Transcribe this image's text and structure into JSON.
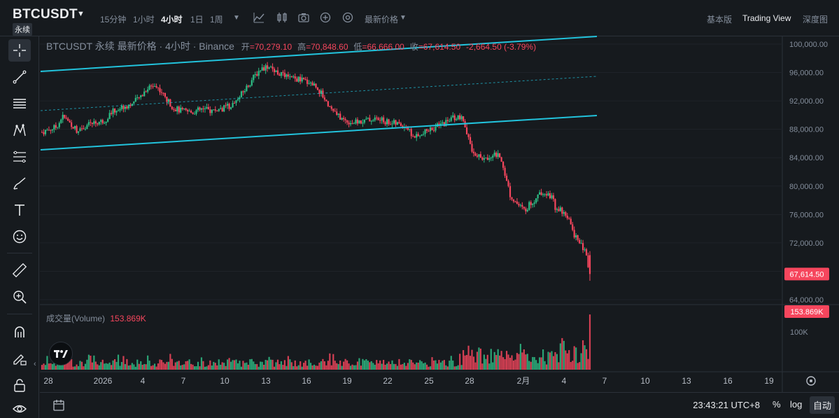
{
  "header": {
    "symbol": "BTCUSDT",
    "perpetual_tag": "永续",
    "timeframes": [
      "15分钟",
      "1小时",
      "4小时",
      "1日",
      "1周"
    ],
    "active_timeframe": "4小时",
    "price_type_label": "最新价格",
    "views": [
      "基本版",
      "Trading View",
      "深度图"
    ],
    "active_view": "Trading View"
  },
  "legend": {
    "title": "BTCUSDT 永续 最新价格 · 4小时 · Binance",
    "open_label": "开",
    "open_value": "=70,279.10",
    "high_label": "高",
    "high_value": "=70,848.60",
    "low_label": "低",
    "low_value": "=66,666.00",
    "close_label": "收",
    "close_value": "=67,614.50",
    "change": "-2,664.50 (-3.79%)"
  },
  "volume_legend": {
    "label": "成交量(Volume)",
    "value": "153.869K"
  },
  "price_axis": {
    "ticks": [
      "100,000.00",
      "96,000.00",
      "92,000.00",
      "88,000.00",
      "84,000.00",
      "80,000.00",
      "76,000.00",
      "72,000.00",
      "68,000.00",
      "64,000.00"
    ],
    "tick_values": [
      100000,
      96000,
      92000,
      88000,
      84000,
      80000,
      76000,
      72000,
      68000,
      64000
    ],
    "last_price_label": "67,614.50",
    "last_price": 67614.5,
    "volume_axis_label": "100K",
    "volume_last_label": "153.869K"
  },
  "time_axis": {
    "labels": [
      "28",
      "2026",
      "4",
      "7",
      "10",
      "13",
      "16",
      "19",
      "22",
      "25",
      "28",
      "2月",
      "4",
      "7",
      "10",
      "13",
      "16",
      "19"
    ]
  },
  "bottom": {
    "clock": "23:43:21 UTC+8",
    "percent_btn": "%",
    "log_btn": "log",
    "auto_btn": "自动"
  },
  "colors": {
    "up": "#2ebd85",
    "down": "#f6465d",
    "channel": "#22c3dc",
    "background": "#161a1e",
    "grid": "#1f2329"
  },
  "chart_data": {
    "type": "candlestick",
    "title": "BTCUSDT 永续 最新价格 · 4小时 · Binance",
    "ylim": [
      64000,
      101000
    ],
    "last": {
      "open": 70279.1,
      "high": 70848.6,
      "low": 66666.0,
      "close": 67614.5
    },
    "drawings": [
      {
        "type": "parallel-channel",
        "color": "#22c3dc"
      }
    ],
    "series": [
      {
        "name": "price",
        "anchors": [
          [
            0,
            87600
          ],
          [
            8,
            88300
          ],
          [
            12,
            89800
          ],
          [
            16,
            88900
          ],
          [
            20,
            87900
          ],
          [
            24,
            88400
          ],
          [
            30,
            88900
          ],
          [
            36,
            89200
          ],
          [
            40,
            90400
          ],
          [
            46,
            91100
          ],
          [
            52,
            91600
          ],
          [
            56,
            92400
          ],
          [
            60,
            93600
          ],
          [
            64,
            94300
          ],
          [
            68,
            93600
          ],
          [
            72,
            92100
          ],
          [
            76,
            91000
          ],
          [
            80,
            90600
          ],
          [
            86,
            90400
          ],
          [
            92,
            90800
          ],
          [
            98,
            90600
          ],
          [
            104,
            90900
          ],
          [
            110,
            91500
          ],
          [
            114,
            92600
          ],
          [
            118,
            93900
          ],
          [
            122,
            95300
          ],
          [
            126,
            96500
          ],
          [
            130,
            96900
          ],
          [
            134,
            96300
          ],
          [
            138,
            95700
          ],
          [
            142,
            95200
          ],
          [
            148,
            95000
          ],
          [
            154,
            94700
          ],
          [
            158,
            94100
          ],
          [
            162,
            92700
          ],
          [
            166,
            91200
          ],
          [
            170,
            90000
          ],
          [
            174,
            89300
          ],
          [
            180,
            88900
          ],
          [
            186,
            89200
          ],
          [
            192,
            89500
          ],
          [
            198,
            89100
          ],
          [
            204,
            88800
          ],
          [
            210,
            88400
          ],
          [
            214,
            87000
          ],
          [
            218,
            86900
          ],
          [
            222,
            87800
          ],
          [
            226,
            88200
          ],
          [
            230,
            88600
          ],
          [
            234,
            89200
          ],
          [
            238,
            89700
          ],
          [
            242,
            89500
          ],
          [
            244,
            88200
          ],
          [
            246,
            86500
          ],
          [
            248,
            85200
          ],
          [
            252,
            84100
          ],
          [
            256,
            83700
          ],
          [
            260,
            84600
          ],
          [
            264,
            84100
          ],
          [
            266,
            82800
          ],
          [
            268,
            80800
          ],
          [
            270,
            78800
          ],
          [
            274,
            77500
          ],
          [
            278,
            76600
          ],
          [
            282,
            77600
          ],
          [
            286,
            78600
          ],
          [
            290,
            79300
          ],
          [
            294,
            78500
          ],
          [
            296,
            77100
          ],
          [
            300,
            76500
          ],
          [
            304,
            75100
          ],
          [
            306,
            73600
          ],
          [
            310,
            72000
          ],
          [
            314,
            70400
          ],
          [
            316,
            67614.5
          ]
        ]
      }
    ],
    "volume": {
      "last": 153869,
      "ylim": [
        0,
        160000
      ]
    }
  }
}
